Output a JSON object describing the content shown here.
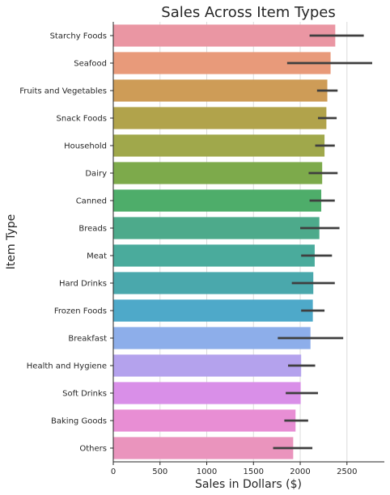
{
  "chart_data": {
    "type": "bar",
    "orientation": "horizontal",
    "title": "Sales Across Item Types",
    "xlabel": "Sales in Dollars ($)",
    "ylabel": "Item Type",
    "xlim": [
      0,
      2900
    ],
    "xticks": [
      0,
      500,
      1000,
      1500,
      2000,
      2500
    ],
    "grid": "vertical",
    "categories": [
      "Starchy Foods",
      "Seafood",
      "Fruits and Vegetables",
      "Snack Foods",
      "Household",
      "Dairy",
      "Canned",
      "Breads",
      "Meat",
      "Hard Drinks",
      "Frozen Foods",
      "Breakfast",
      "Health and Hygiene",
      "Soft Drinks",
      "Baking Goods",
      "Others"
    ],
    "values": [
      2375,
      2325,
      2290,
      2280,
      2260,
      2235,
      2225,
      2205,
      2155,
      2140,
      2135,
      2110,
      2010,
      2005,
      1950,
      1925
    ],
    "error_low": [
      2100,
      1860,
      2180,
      2190,
      2160,
      2090,
      2100,
      2000,
      2010,
      1910,
      2010,
      1760,
      1870,
      1845,
      1830,
      1710
    ],
    "error_high": [
      2680,
      2770,
      2400,
      2390,
      2370,
      2400,
      2370,
      2420,
      2340,
      2370,
      2260,
      2460,
      2160,
      2190,
      2085,
      2130
    ],
    "colors": [
      "#ea96a3",
      "#e89a7a",
      "#ce9c57",
      "#b1a34b",
      "#a0a84b",
      "#7daa4b",
      "#4ead6a",
      "#4daa8b",
      "#4aab9c",
      "#4aa8ac",
      "#4ea9c9",
      "#8daeea",
      "#b4a2ed",
      "#d98fe8",
      "#e88ed4",
      "#ea94bd"
    ]
  }
}
